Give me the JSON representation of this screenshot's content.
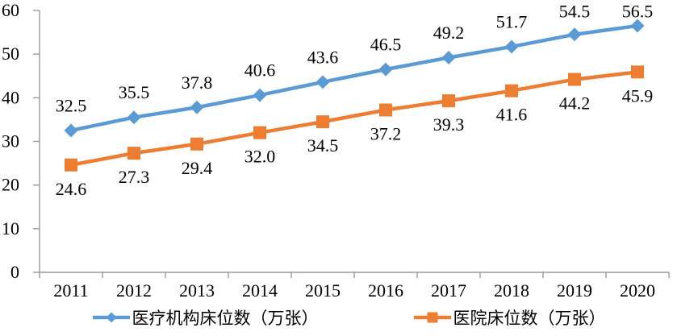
{
  "chart_data": {
    "type": "line",
    "title": "",
    "categories": [
      "2011",
      "2012",
      "2013",
      "2014",
      "2015",
      "2016",
      "2017",
      "2018",
      "2019",
      "2020"
    ],
    "series": [
      {
        "name": "医疗机构床位数（万张）",
        "color": "#5B9BD5",
        "marker": "diamond",
        "label_position": "above",
        "values": [
          32.5,
          35.5,
          37.8,
          40.6,
          43.6,
          46.5,
          49.2,
          51.7,
          54.5,
          56.5
        ],
        "labels": [
          "32.5",
          "35.5",
          "37.8",
          "40.6",
          "43.6",
          "46.5",
          "49.2",
          "51.7",
          "54.5",
          "56.5"
        ]
      },
      {
        "name": "医院床位数（万张）",
        "color": "#ED7D31",
        "marker": "square",
        "label_position": "below",
        "values": [
          24.6,
          27.3,
          29.4,
          32.0,
          34.5,
          37.2,
          39.3,
          41.6,
          44.2,
          45.9
        ],
        "labels": [
          "24.6",
          "27.3",
          "29.4",
          "32.0",
          "34.5",
          "37.2",
          "39.3",
          "41.6",
          "44.2",
          "45.9"
        ]
      }
    ],
    "y_axis": {
      "min": 0,
      "max": 60,
      "tick_step": 10,
      "tick_labels": [
        "0",
        "10",
        "20",
        "30",
        "40",
        "50",
        "60"
      ]
    },
    "x_axis_label": "",
    "y_axis_label": "",
    "grid": false,
    "legend_position": "bottom",
    "colors": {
      "axis": "#9A9A9A",
      "text": "#000000",
      "background": "#FFFFFF"
    }
  }
}
